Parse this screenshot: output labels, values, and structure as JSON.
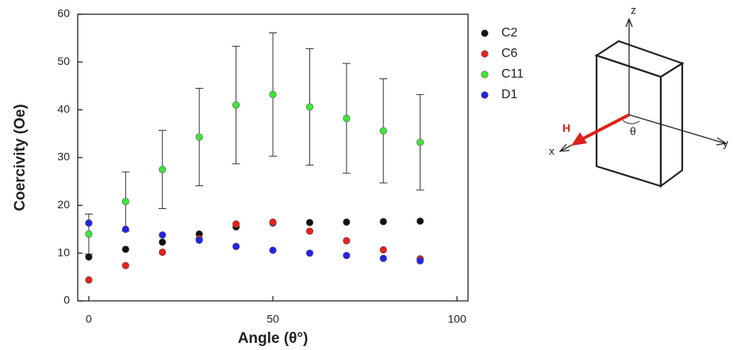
{
  "chart_data": {
    "type": "scatter",
    "xlabel": "Angle (θ°)",
    "ylabel": "Coercivity (Oe)",
    "x": [
      0,
      10,
      20,
      30,
      40,
      50,
      60,
      70,
      80,
      90
    ],
    "series": [
      {
        "name": "C2",
        "color": "#111111",
        "values": [
          9.2,
          10.8,
          12.3,
          14,
          15.5,
          16.3,
          16.4,
          16.5,
          16.6,
          16.7
        ]
      },
      {
        "name": "C6",
        "color": "#e8201c",
        "values": [
          4.4,
          7.4,
          10.2,
          13,
          16.1,
          16.5,
          14.6,
          12.6,
          10.7,
          8.8
        ]
      },
      {
        "name": "C11",
        "color": "#3ee63a",
        "values": [
          14,
          20.8,
          27.5,
          34.3,
          41,
          43.2,
          40.6,
          38.2,
          35.6,
          33.2
        ],
        "errors": [
          4.2,
          6.2,
          8.2,
          10.2,
          12.3,
          12.9,
          12.2,
          11.5,
          10.9,
          10
        ]
      },
      {
        "name": "D1",
        "color": "#2323e8",
        "values": [
          16.3,
          15,
          13.8,
          12.7,
          11.4,
          10.6,
          10,
          9.5,
          8.9,
          8.4
        ]
      }
    ],
    "xlim": [
      -3,
      103
    ],
    "xticks": [
      0,
      50,
      100
    ],
    "ylim": [
      0,
      60
    ],
    "yticks": [
      0,
      10,
      20,
      30,
      40,
      50,
      60
    ]
  },
  "diagram": {
    "labels": {
      "z": "z",
      "y": "y",
      "x": "x",
      "field": "H",
      "angle": "θ"
    }
  }
}
